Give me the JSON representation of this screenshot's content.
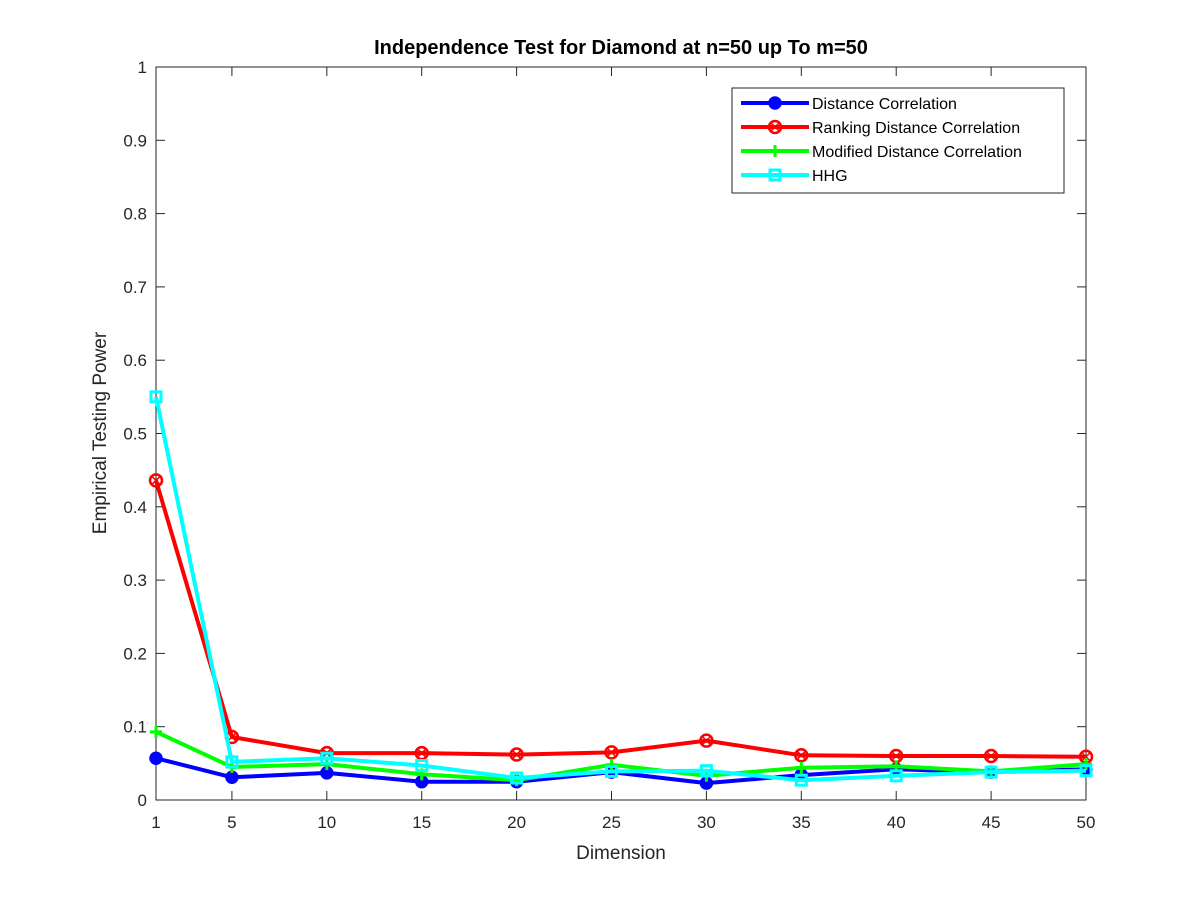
{
  "chart_data": {
    "type": "line",
    "title": "Independence Test for Diamond at n=50 up To m=50",
    "xlabel": "Dimension",
    "ylabel": "Empirical Testing Power",
    "x": [
      1,
      5,
      10,
      15,
      20,
      25,
      30,
      35,
      40,
      45,
      50
    ],
    "xticks": [
      1,
      5,
      10,
      15,
      20,
      25,
      30,
      35,
      40,
      45,
      50
    ],
    "yticks": [
      0,
      0.1,
      0.2,
      0.3,
      0.4,
      0.5,
      0.6,
      0.7,
      0.8,
      0.9,
      1
    ],
    "xlim": [
      1,
      50
    ],
    "ylim": [
      0,
      1
    ],
    "grid": false,
    "legend_position": "top-right",
    "series": [
      {
        "name": "Distance Correlation",
        "color": "#0000ff",
        "marker": "filled-circle",
        "values": [
          0.057,
          0.031,
          0.037,
          0.025,
          0.025,
          0.038,
          0.023,
          0.034,
          0.042,
          0.038,
          0.042
        ]
      },
      {
        "name": "Ranking Distance Correlation",
        "color": "#ff0000",
        "marker": "circle-cross",
        "values": [
          0.436,
          0.086,
          0.064,
          0.064,
          0.062,
          0.065,
          0.081,
          0.061,
          0.06,
          0.06,
          0.059
        ]
      },
      {
        "name": "Modified Distance Correlation",
        "color": "#00ff00",
        "marker": "plus",
        "values": [
          0.093,
          0.045,
          0.049,
          0.035,
          0.027,
          0.048,
          0.033,
          0.044,
          0.046,
          0.039,
          0.049
        ]
      },
      {
        "name": "HHG",
        "color": "#00ffff",
        "marker": "square",
        "values": [
          0.55,
          0.052,
          0.057,
          0.047,
          0.03,
          0.039,
          0.04,
          0.027,
          0.033,
          0.038,
          0.04
        ]
      }
    ]
  }
}
